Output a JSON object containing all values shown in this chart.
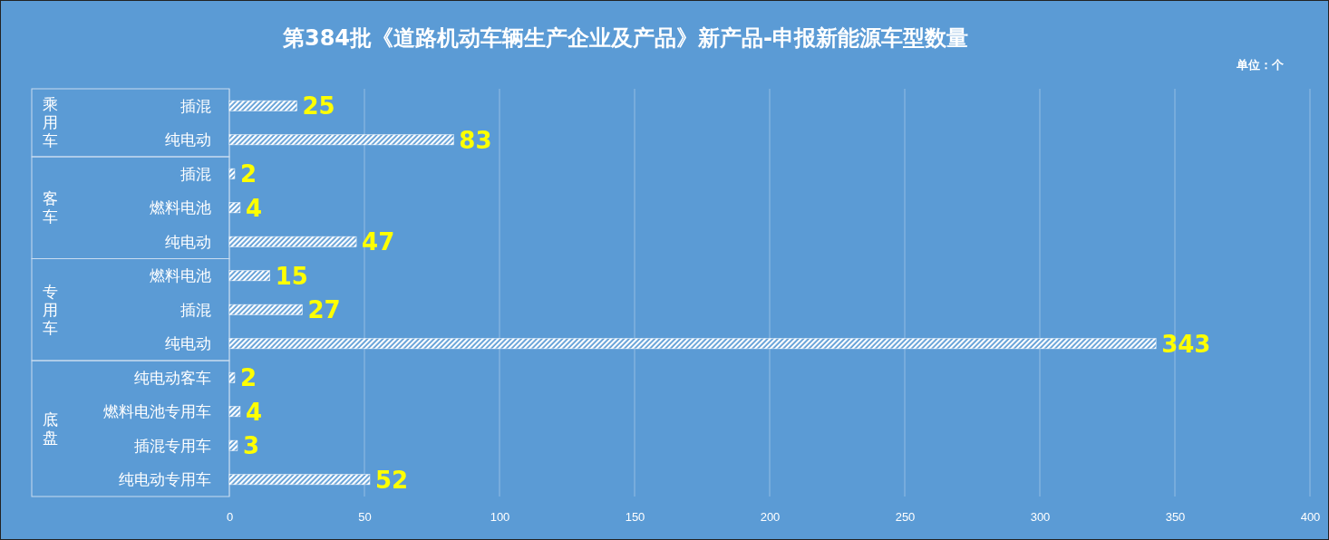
{
  "chart_data": {
    "type": "bar",
    "orientation": "horizontal",
    "title": "第384批《道路机动车辆生产企业及产品》新产品-申报新能源车型数量",
    "categories": [
      "插混",
      "纯电动",
      "插混",
      "燃料电池",
      "纯电动",
      "燃料电池",
      "插混",
      "纯电动",
      "纯电动客车",
      "燃料电池专用车",
      "插混专用车",
      "纯电动专用车"
    ],
    "values": [
      25,
      83,
      2,
      4,
      47,
      15,
      27,
      343,
      2,
      4,
      3,
      52
    ],
    "color": "#ffffff",
    "xlim": [
      0,
      400
    ],
    "xticks": [
      0,
      50,
      100,
      150,
      200,
      250,
      300,
      350,
      400
    ],
    "grid": "x",
    "data_labels": true,
    "annotations": [
      "单位：个",
      "乘用车",
      "客车",
      "专用车",
      "底盘"
    ]
  }
}
